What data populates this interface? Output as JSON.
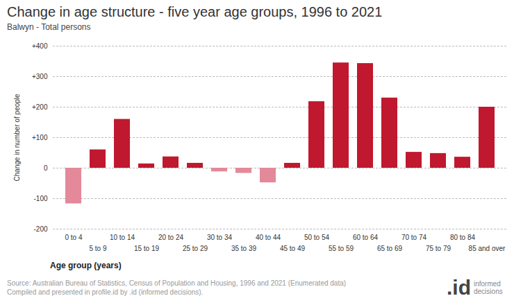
{
  "chart_data": {
    "type": "bar",
    "title": "Change in age structure - five year age groups, 1996 to 2021",
    "subtitle": "Balwyn - Total persons",
    "xlabel": "Age group (years)",
    "ylabel": "Change in number of people",
    "categories": [
      "0 to 4",
      "5 to 9",
      "10 to 14",
      "15 to 19",
      "20 to 24",
      "25 to 29",
      "30 to 34",
      "35 to 39",
      "40 to 44",
      "45 to 49",
      "50 to 54",
      "55 to 59",
      "60 to 64",
      "65 to 69",
      "70 to 74",
      "75 to 79",
      "80 to 84",
      "85 and over"
    ],
    "values": [
      -117,
      60,
      160,
      14,
      37,
      16,
      -12,
      -17,
      -48,
      16,
      218,
      345,
      343,
      230,
      52,
      48,
      36,
      200
    ],
    "colors": [
      "#e3899a",
      "#c0182e",
      "#c0182e",
      "#c0182e",
      "#c0182e",
      "#c0182e",
      "#e3899a",
      "#e3899a",
      "#e3899a",
      "#c0182e",
      "#c0182e",
      "#c0182e",
      "#c0182e",
      "#c0182e",
      "#c0182e",
      "#c0182e",
      "#c0182e",
      "#c0182e"
    ],
    "ylim": [
      -200,
      400
    ],
    "yticks": [
      {
        "value": 400,
        "label": "+400"
      },
      {
        "value": 300,
        "label": "+300"
      },
      {
        "value": 200,
        "label": "+200"
      },
      {
        "value": 100,
        "label": "+100"
      },
      0,
      -100,
      -200
    ],
    "grid": true,
    "source": [
      "Source: Australian Bureau of Statistics, Census of Population and Housing, 1996 and 2021 (Enumerated data)",
      "Compiled and presented in profile.id by .id (informed decisions)."
    ],
    "logo": ".id",
    "logo_text": "informed decisions"
  }
}
